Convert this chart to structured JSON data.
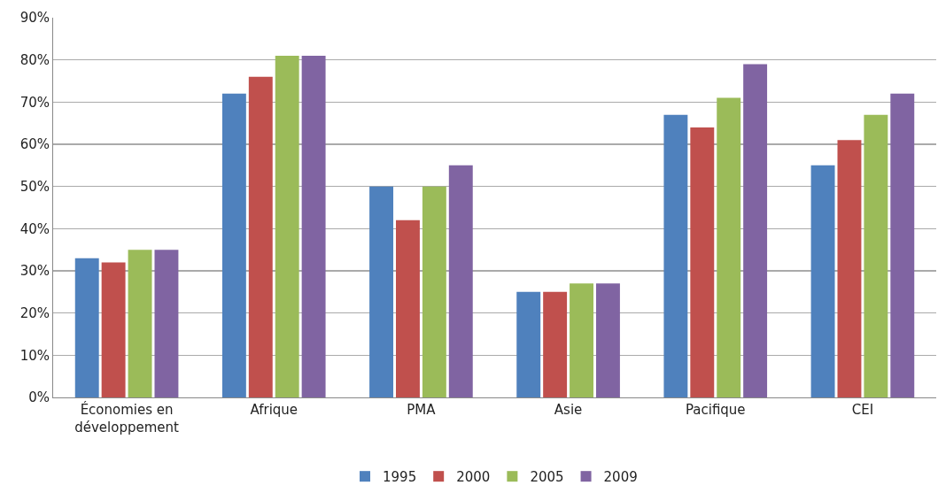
{
  "chart_data": {
    "type": "bar",
    "categories": [
      "Économies en développement",
      "Afrique",
      "PMA",
      "Asie",
      "Pacifique",
      "CEI"
    ],
    "series": [
      {
        "name": "1995",
        "color": "#4f81bd",
        "values": [
          33,
          72,
          50,
          25,
          67,
          55
        ]
      },
      {
        "name": "2000",
        "color": "#c0504d",
        "values": [
          32,
          76,
          42,
          25,
          64,
          61
        ]
      },
      {
        "name": "2005",
        "color": "#9bbb59",
        "values": [
          35,
          81,
          50,
          27,
          71,
          67
        ]
      },
      {
        "name": "2009",
        "color": "#8064a2",
        "values": [
          35,
          81,
          55,
          27,
          79,
          72
        ]
      }
    ],
    "ylim": [
      0,
      90
    ],
    "yticks": [
      {
        "value": 0,
        "label": "0%"
      },
      {
        "value": 10,
        "label": "10%"
      },
      {
        "value": 20,
        "label": "20%"
      },
      {
        "value": 30,
        "label": "30%"
      },
      {
        "value": 40,
        "label": "40%"
      },
      {
        "value": 50,
        "label": "50%"
      },
      {
        "value": 60,
        "label": "60%"
      },
      {
        "value": 70,
        "label": "70%"
      },
      {
        "value": 80,
        "label": "80%"
      },
      {
        "value": 90,
        "label": "90%"
      }
    ],
    "grid": "y",
    "legend": "bottom"
  }
}
